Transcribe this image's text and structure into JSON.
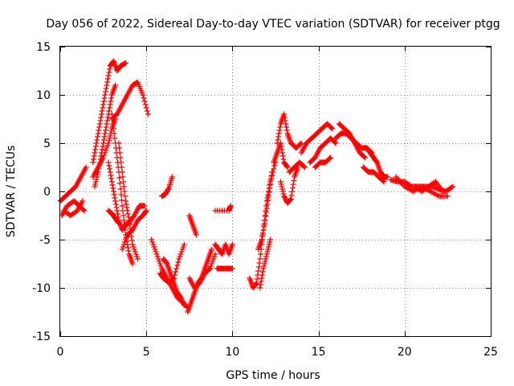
{
  "chart_data": {
    "type": "scatter",
    "title": "Day 056 of 2022, Sidereal Day-to-day VTEC variation (SDTVAR) for receiver ptgg",
    "xlabel": "GPS time / hours",
    "ylabel": "SDTVAR / TECUs",
    "xlim": [
      0,
      25
    ],
    "ylim": [
      -15,
      15
    ],
    "xticks": [
      0,
      5,
      10,
      15,
      20,
      25
    ],
    "xtick_labels": [
      "0",
      "5",
      "10",
      "15",
      "20",
      "25"
    ],
    "yticks": [
      -15,
      -10,
      -5,
      0,
      5,
      10,
      15
    ],
    "ytick_labels": [
      "-15",
      "-10",
      "-5",
      "0",
      "5",
      "10",
      "15"
    ],
    "grid": true,
    "marker": "+",
    "series_color": "#ff0000",
    "tracks": [
      {
        "name": "early-low-a",
        "x": [
          0.0,
          0.3,
          0.6,
          0.9,
          1.2,
          1.5
        ],
        "y": [
          -1.0,
          -0.5,
          0.0,
          0.5,
          1.5,
          2.5
        ]
      },
      {
        "name": "early-low-b",
        "x": [
          0.1,
          0.4,
          0.8,
          1.1,
          1.4
        ],
        "y": [
          -2.5,
          -1.5,
          -1.0,
          -1.5,
          -2.0
        ]
      },
      {
        "name": "early-low-c",
        "x": [
          0.2,
          0.6,
          1.0,
          1.3
        ],
        "y": [
          -2.0,
          -2.5,
          -2.0,
          -1.0
        ]
      },
      {
        "name": "rise-to-peak",
        "x": [
          1.9,
          2.1,
          2.3,
          2.5,
          2.7,
          2.9,
          3.1,
          3.3,
          3.5,
          3.8
        ],
        "y": [
          3.0,
          5.0,
          7.0,
          9.0,
          11.0,
          13.0,
          13.5,
          12.5,
          13.0,
          13.3
        ]
      },
      {
        "name": "rise-branch",
        "x": [
          2.0,
          2.2,
          2.4,
          2.6,
          2.8,
          3.0,
          3.2
        ],
        "y": [
          0.5,
          2.0,
          4.0,
          6.0,
          8.0,
          10.0,
          11.0
        ]
      },
      {
        "name": "arc-high",
        "x": [
          3.0,
          3.3,
          3.6,
          3.9,
          4.2,
          4.5,
          4.8,
          5.1
        ],
        "y": [
          7.5,
          8.0,
          9.0,
          10.0,
          11.0,
          11.3,
          10.0,
          8.0
        ]
      },
      {
        "name": "mid-branch",
        "x": [
          1.9,
          2.2,
          2.5,
          2.8,
          3.0,
          3.2
        ],
        "y": [
          1.5,
          2.5,
          3.5,
          5.0,
          6.5,
          7.5
        ]
      },
      {
        "name": "descent-a",
        "x": [
          3.0,
          3.2,
          3.4,
          3.6,
          3.8,
          4.0,
          4.2
        ],
        "y": [
          8.0,
          5.0,
          2.0,
          -1.5,
          -4.5,
          -6.5,
          -7.5
        ]
      },
      {
        "name": "descent-b",
        "x": [
          3.4,
          3.6,
          3.8,
          4.0,
          4.2,
          4.5
        ],
        "y": [
          5.0,
          2.0,
          -1.0,
          -3.0,
          -5.5,
          -7.0
        ]
      },
      {
        "name": "descent-c",
        "x": [
          2.8,
          3.0,
          3.2,
          3.4,
          3.6,
          3.8
        ],
        "y": [
          3.0,
          1.0,
          -1.0,
          -3.0,
          -4.0,
          -3.5
        ]
      },
      {
        "name": "trough-right",
        "x": [
          3.7,
          4.0,
          4.3,
          4.6,
          4.9
        ],
        "y": [
          -3.5,
          -3.3,
          -2.5,
          -1.5,
          -1.5
        ]
      },
      {
        "name": "trough-lower",
        "x": [
          3.6,
          3.9,
          4.2,
          4.5,
          4.8,
          5.0
        ],
        "y": [
          -6.0,
          -4.5,
          -4.0,
          -3.0,
          -2.5,
          -2.0
        ]
      },
      {
        "name": "bottom-a",
        "x": [
          2.8,
          3.0,
          3.2,
          3.4
        ],
        "y": [
          -2.0,
          -2.3,
          -2.8,
          -3.3
        ]
      },
      {
        "name": "steps-6",
        "x": [
          5.3,
          5.6,
          5.9,
          6.2,
          6.5,
          6.8,
          7.1,
          7.4
        ],
        "y": [
          -5.0,
          -6.5,
          -8.0,
          -9.0,
          -10.0,
          -11.0,
          -11.5,
          -12.0
        ]
      },
      {
        "name": "steps-6b",
        "x": [
          6.0,
          6.2,
          6.4,
          6.6,
          6.8,
          7.0,
          7.2
        ],
        "y": [
          -7.0,
          -7.5,
          -8.5,
          -9.5,
          -10.5,
          -11.0,
          -11.8
        ]
      },
      {
        "name": "steps-6c",
        "x": [
          5.8,
          6.0,
          6.2,
          6.4,
          6.6,
          6.9,
          7.2
        ],
        "y": [
          -8.5,
          -9.0,
          -9.3,
          -9.5,
          -9.0,
          -7.0,
          -5.5
        ]
      },
      {
        "name": "small-arc-6",
        "x": [
          5.9,
          6.1,
          6.3,
          6.5
        ],
        "y": [
          -0.5,
          -0.3,
          0.3,
          1.5
        ]
      },
      {
        "name": "valley-7-8",
        "x": [
          7.4,
          7.6,
          7.8,
          8.0,
          8.2,
          8.4,
          8.6,
          8.8
        ],
        "y": [
          -12.5,
          -11.5,
          -10.5,
          -9.5,
          -9.0,
          -8.0,
          -7.0,
          -6.0
        ]
      },
      {
        "name": "valley-7-8b",
        "x": [
          7.5,
          7.8,
          8.1,
          8.4,
          8.7,
          9.0
        ],
        "y": [
          -9.0,
          -10.0,
          -9.5,
          -8.5,
          -8.0,
          -6.5
        ]
      },
      {
        "name": "valley-upper",
        "x": [
          7.5,
          7.7,
          7.9
        ],
        "y": [
          -2.5,
          -3.5,
          -4.5
        ]
      },
      {
        "name": "cluster-9",
        "x": [
          9.0,
          9.2,
          9.4,
          9.6,
          9.8,
          10.0
        ],
        "y": [
          -5.5,
          -6.0,
          -6.5,
          -5.5,
          -6.5,
          -5.5
        ]
      },
      {
        "name": "cluster-9b",
        "x": [
          9.1,
          9.4,
          9.7,
          10.0
        ],
        "y": [
          -8.0,
          -8.0,
          -8.0,
          -8.0
        ]
      },
      {
        "name": "isolated-9",
        "x": [
          9.0,
          9.8,
          9.9
        ],
        "y": [
          -2.0,
          -2.0,
          -1.5
        ]
      },
      {
        "name": "rise-11",
        "x": [
          11.0,
          11.2,
          11.4,
          11.6,
          11.8,
          12.0,
          12.2,
          12.5
        ],
        "y": [
          -9.0,
          -10.0,
          -9.5,
          -7.0,
          -4.0,
          -1.0,
          1.0,
          3.0
        ]
      },
      {
        "name": "rise-11b",
        "x": [
          11.5,
          11.7,
          11.9,
          12.1,
          12.3
        ],
        "y": [
          -6.0,
          -5.0,
          -3.0,
          -0.5,
          2.0
        ]
      },
      {
        "name": "rise-11c",
        "x": [
          11.6,
          11.8,
          12.0,
          12.2
        ],
        "y": [
          -10.0,
          -8.0,
          -6.5,
          -5.0
        ]
      },
      {
        "name": "peak-13",
        "x": [
          12.6,
          12.8,
          13.0,
          13.2,
          13.4,
          13.7,
          14.0
        ],
        "y": [
          5.0,
          7.0,
          8.0,
          6.0,
          5.0,
          4.5,
          5.0
        ]
      },
      {
        "name": "peak-13b",
        "x": [
          12.4,
          12.6,
          12.8,
          13.0,
          13.2
        ],
        "y": [
          3.0,
          4.0,
          5.0,
          3.0,
          2.5
        ]
      },
      {
        "name": "dip-13",
        "x": [
          12.8,
          13.0,
          13.2,
          13.4,
          13.6,
          13.8
        ],
        "y": [
          1.0,
          -0.5,
          -1.2,
          -0.8,
          1.5,
          2.5
        ]
      },
      {
        "name": "mid-13-14",
        "x": [
          13.3,
          13.6,
          13.9,
          14.2
        ],
        "y": [
          2.0,
          2.5,
          3.0,
          2.5
        ]
      },
      {
        "name": "right-hump",
        "x": [
          14.0,
          14.3,
          14.6,
          14.9,
          15.2,
          15.5,
          15.8
        ],
        "y": [
          4.0,
          5.0,
          5.5,
          6.0,
          6.5,
          7.0,
          6.5
        ]
      },
      {
        "name": "right-hump-b",
        "x": [
          14.5,
          14.8,
          15.1,
          15.4,
          15.7,
          16.0
        ],
        "y": [
          3.0,
          3.5,
          4.5,
          5.0,
          5.5,
          5.0
        ]
      },
      {
        "name": "right-hump-c",
        "x": [
          14.8,
          15.1,
          15.4,
          15.7
        ],
        "y": [
          2.5,
          3.0,
          3.0,
          3.5
        ]
      },
      {
        "name": "plateau-16",
        "x": [
          16.0,
          16.3,
          16.6,
          16.9,
          17.2,
          17.5,
          17.8,
          18.1
        ],
        "y": [
          5.5,
          6.0,
          6.0,
          5.5,
          5.0,
          4.5,
          4.5,
          4.0
        ]
      },
      {
        "name": "plateau-16b",
        "x": [
          16.2,
          16.5,
          16.8,
          17.1,
          17.4,
          17.7
        ],
        "y": [
          7.0,
          6.5,
          6.0,
          5.0,
          4.0,
          3.5
        ]
      },
      {
        "name": "descent-18",
        "x": [
          17.8,
          18.0,
          18.2,
          18.4,
          18.6,
          18.8,
          19.0
        ],
        "y": [
          4.5,
          4.0,
          3.5,
          3.0,
          2.0,
          1.5,
          1.5
        ]
      },
      {
        "name": "descent-18b",
        "x": [
          17.6,
          17.9,
          18.2,
          18.5,
          18.8
        ],
        "y": [
          2.5,
          2.0,
          2.0,
          1.5,
          1.0
        ]
      },
      {
        "name": "tail-20",
        "x": [
          19.2,
          19.6,
          20.0,
          20.4,
          20.8,
          21.2,
          21.6,
          22.0,
          22.4,
          22.8
        ],
        "y": [
          1.2,
          1.0,
          1.0,
          0.5,
          0.5,
          0.5,
          0.5,
          0.2,
          0.0,
          0.5
        ]
      },
      {
        "name": "tail-20b",
        "x": [
          19.5,
          20.0,
          20.5,
          21.0,
          21.5,
          22.0,
          22.5
        ],
        "y": [
          1.5,
          0.5,
          0.0,
          0.5,
          0.0,
          -0.5,
          -0.5
        ]
      },
      {
        "name": "tail-21",
        "x": [
          20.6,
          21.0,
          21.4,
          21.8,
          22.2
        ],
        "y": [
          0.5,
          0.0,
          0.5,
          1.0,
          0.0
        ]
      }
    ]
  }
}
